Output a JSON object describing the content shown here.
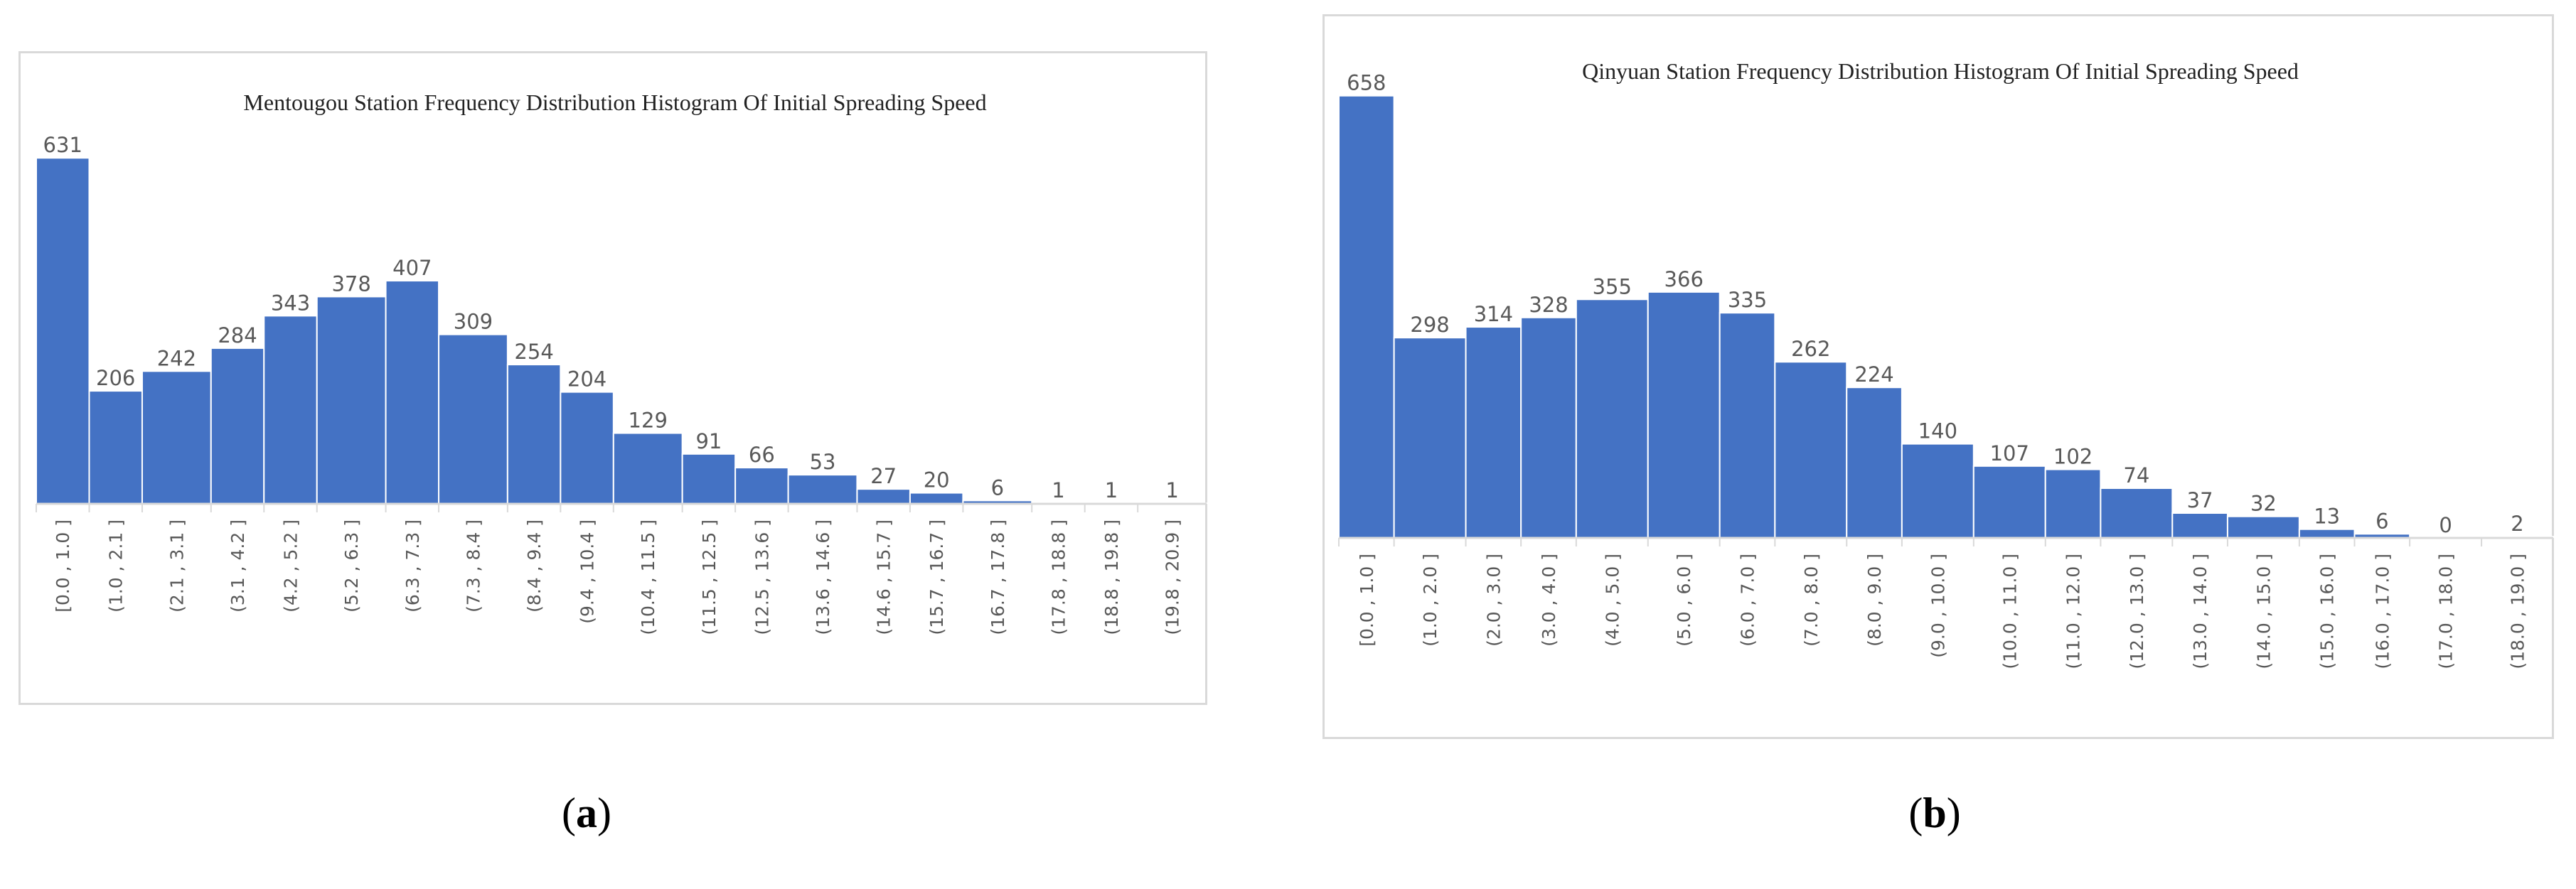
{
  "colors": {
    "bar": "#4472c4",
    "axis": "#d9d9d9",
    "text": "#595959"
  },
  "panels": [
    {
      "open": "(",
      "letter": "a",
      "close": ")"
    },
    {
      "open": "(",
      "letter": "b",
      "close": ")"
    }
  ],
  "chart_data": [
    {
      "type": "bar",
      "title": "Mentougou Station Frequency Distribution Histogram Of Initial Spreading Speed",
      "xlabel": "",
      "ylabel": "",
      "ylim": [
        0,
        700
      ],
      "grid": false,
      "legend": "none",
      "categories": [
        "[0.0 , 1.0 ]",
        "(1.0 , 2.1 ]",
        "(2.1 , 3.1 ]",
        "(3.1 , 4.2 ]",
        "(4.2 , 5.2 ]",
        "(5.2 , 6.3 ]",
        "(6.3 , 7.3 ]",
        "(7.3 , 8.4 ]",
        "(8.4 , 9.4 ]",
        "(9.4 , 10.4 ]",
        "(10.4 , 11.5 ]",
        "(11.5 , 12.5 ]",
        "(12.5 , 13.6 ]",
        "(13.6 , 14.6 ]",
        "(14.6 , 15.7 ]",
        "(15.7 , 16.7 ]",
        "(16.7 , 17.8 ]",
        "(17.8 , 18.8 ]",
        "(18.8 , 19.8 ]",
        "(19.8 , 20.9 ]"
      ],
      "values": [
        631,
        206,
        242,
        284,
        343,
        378,
        407,
        309,
        254,
        204,
        129,
        91,
        66,
        53,
        27,
        20,
        6,
        1,
        1,
        1
      ],
      "widths": [
        1,
        1,
        1.3,
        1,
        1,
        1.3,
        1,
        1.3,
        1,
        1,
        1.3,
        1,
        1,
        1.3,
        1,
        1,
        1.3,
        1,
        1,
        1.3
      ]
    },
    {
      "type": "bar",
      "title": "Qinyuan Station Frequency Distribution Histogram Of Initial Spreading Speed",
      "xlabel": "",
      "ylabel": "",
      "ylim": [
        0,
        700
      ],
      "grid": false,
      "legend": "none",
      "categories": [
        "[0.0 , 1.0 ]",
        "(1.0 , 2.0 ]",
        "(2.0 , 3.0 ]",
        "(3.0 , 4.0 ]",
        "(4.0 , 5.0 ]",
        "(5.0 , 6.0 ]",
        "(6.0 , 7.0 ]",
        "(7.0 , 8.0 ]",
        "(8.0 , 9.0 ]",
        "(9.0 , 10.0 ]",
        "(10.0 , 11.0 ]",
        "(11.0 , 12.0 ]",
        "(12.0 , 13.0 ]",
        "(13.0 , 14.0 ]",
        "(14.0 , 15.0 ]",
        "(15.0 , 16.0 ]",
        "(16.0 , 17.0 ]",
        "(17.0 , 18.0 ]",
        "(18.0 , 19.0 ]"
      ],
      "values": [
        658,
        298,
        314,
        328,
        355,
        366,
        335,
        262,
        224,
        140,
        107,
        102,
        74,
        37,
        32,
        13,
        6,
        0,
        2
      ],
      "widths": [
        1,
        1.3,
        1,
        1,
        1.3,
        1.3,
        1,
        1.3,
        1,
        1.3,
        1.3,
        1,
        1.3,
        1,
        1.3,
        1,
        1,
        1.3,
        1.3
      ]
    }
  ]
}
